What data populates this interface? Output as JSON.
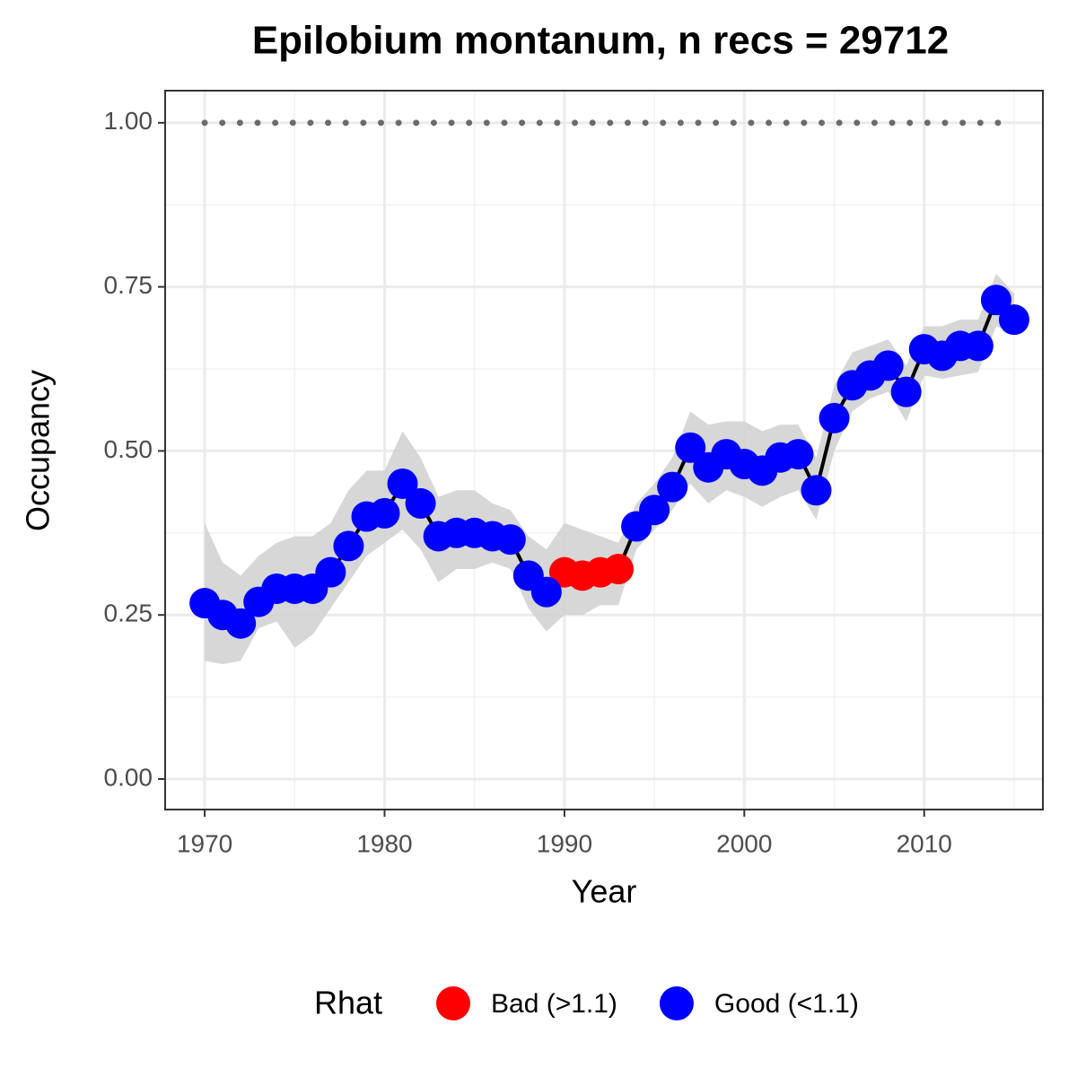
{
  "chart_data": {
    "type": "line",
    "title": "Epilobium montanum, n recs = 29712",
    "x_label": "Year",
    "y_label": "Occupancy",
    "x": [
      1970,
      1971,
      1972,
      1973,
      1974,
      1975,
      1976,
      1977,
      1978,
      1979,
      1980,
      1981,
      1982,
      1983,
      1984,
      1985,
      1986,
      1987,
      1988,
      1989,
      1990,
      1991,
      1992,
      1993,
      1994,
      1995,
      1996,
      1997,
      1998,
      1999,
      2000,
      2001,
      2002,
      2003,
      2004,
      2005,
      2006,
      2007,
      2008,
      2009,
      2010,
      2011,
      2012,
      2013,
      2014,
      2015
    ],
    "series": [
      {
        "name": "Bad (>1.1)",
        "color": "#ff0000",
        "values": [
          null,
          null,
          null,
          null,
          null,
          null,
          null,
          null,
          null,
          null,
          null,
          null,
          null,
          null,
          null,
          null,
          null,
          null,
          null,
          null,
          0.315,
          0.31,
          0.315,
          0.32,
          null,
          null,
          null,
          null,
          null,
          null,
          null,
          null,
          null,
          null,
          null,
          null,
          null,
          null,
          null,
          null,
          null,
          null,
          null,
          null,
          null,
          null
        ]
      },
      {
        "name": "Good (<1.1)",
        "color": "#0000ff",
        "values": [
          0.268,
          0.25,
          0.237,
          0.27,
          0.29,
          0.29,
          0.29,
          0.315,
          0.355,
          0.4,
          0.405,
          0.45,
          0.42,
          0.37,
          0.375,
          0.375,
          0.37,
          0.365,
          0.31,
          0.285,
          null,
          null,
          null,
          null,
          0.385,
          0.41,
          0.445,
          0.505,
          0.475,
          0.495,
          0.48,
          0.47,
          0.49,
          0.495,
          0.44,
          0.55,
          0.6,
          0.615,
          0.63,
          0.59,
          0.655,
          0.645,
          0.66,
          0.66,
          0.73,
          0.7
        ]
      }
    ],
    "lower": [
      0.18,
      0.175,
      0.18,
      0.23,
      0.24,
      0.2,
      0.22,
      0.26,
      0.3,
      0.34,
      0.36,
      0.38,
      0.35,
      0.3,
      0.32,
      0.32,
      0.33,
      0.32,
      0.26,
      0.225,
      0.25,
      0.25,
      0.265,
      0.265,
      0.35,
      0.38,
      0.41,
      0.45,
      0.42,
      0.44,
      0.43,
      0.415,
      0.43,
      0.44,
      0.395,
      0.5,
      0.56,
      0.58,
      0.59,
      0.545,
      0.615,
      0.61,
      0.615,
      0.62,
      0.69,
      0.68
    ],
    "upper": [
      0.39,
      0.33,
      0.31,
      0.34,
      0.36,
      0.37,
      0.37,
      0.39,
      0.44,
      0.47,
      0.47,
      0.53,
      0.49,
      0.43,
      0.44,
      0.44,
      0.42,
      0.41,
      0.37,
      0.35,
      0.39,
      0.38,
      0.37,
      0.36,
      0.42,
      0.45,
      0.49,
      0.56,
      0.54,
      0.545,
      0.545,
      0.53,
      0.54,
      0.54,
      0.49,
      0.6,
      0.65,
      0.66,
      0.67,
      0.63,
      0.69,
      0.69,
      0.7,
      0.7,
      0.77,
      0.74
    ],
    "hline": 1,
    "line_color": "#000000",
    "band_color": "#d3d3d3",
    "hline_color": "#6b6b6b",
    "xlim": [
      1967.8,
      2016.6
    ],
    "ylim": [
      -0.0465,
      1.049
    ],
    "xticks": [
      1970,
      1980,
      1990,
      2000,
      2010
    ],
    "yticks": [
      {
        "value": 0,
        "label": "0.00"
      },
      {
        "value": 0.25,
        "label": "0.25"
      },
      {
        "value": 0.5,
        "label": "0.50"
      },
      {
        "value": 0.75,
        "label": "0.75"
      },
      {
        "value": 1,
        "label": "1.00"
      }
    ],
    "grid": true,
    "legend": {
      "title": "Rhat",
      "position": "bottom"
    }
  }
}
